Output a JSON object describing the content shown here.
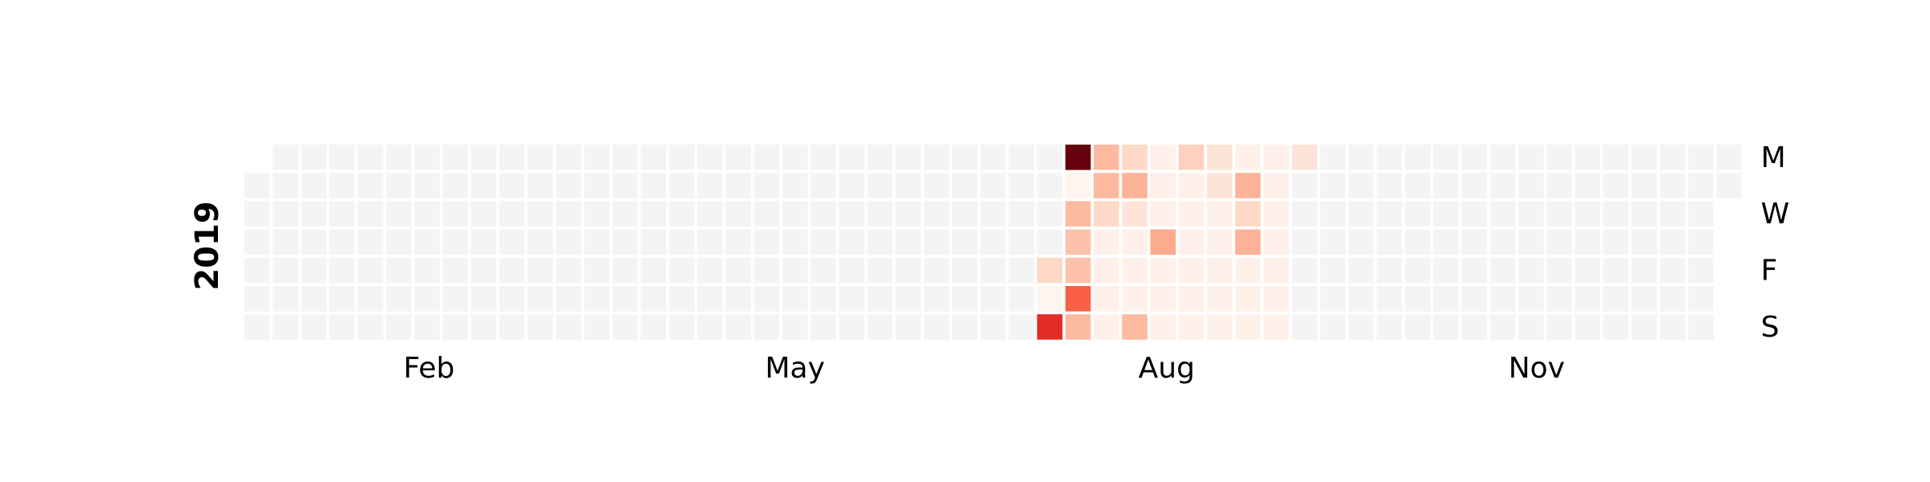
{
  "chart_data": {
    "type": "heatmap",
    "year": 2019,
    "xticks": [
      {
        "value": 2,
        "label": "Feb"
      },
      {
        "value": 5,
        "label": "May"
      },
      {
        "value": 8,
        "label": "Aug"
      },
      {
        "value": 11,
        "label": "Nov"
      }
    ],
    "yticks": [
      {
        "value": 0,
        "label": "M"
      },
      {
        "value": 2,
        "label": "W"
      },
      {
        "value": 4,
        "label": "F"
      },
      {
        "value": 6,
        "label": "S"
      }
    ],
    "colors": [
      "#fff5f0",
      "#fee0d2",
      "#fcbba1",
      "#fc9272",
      "#fb6a4a",
      "#ef3b2c",
      "#cb181d",
      "#a50f15",
      "#67000d"
    ],
    "fillcolor": "#f4f4f4",
    "values": [
      null,
      null,
      null,
      null,
      null,
      null,
      null,
      null,
      null,
      null,
      null,
      null,
      null,
      null,
      null,
      null,
      null,
      null,
      null,
      null,
      null,
      null,
      null,
      null,
      null,
      null,
      null,
      null,
      null,
      null,
      null,
      null,
      null,
      null,
      null,
      null,
      null,
      null,
      null,
      null,
      null,
      null,
      null,
      null,
      null,
      null,
      null,
      null,
      null,
      null,
      null,
      null,
      null,
      null,
      null,
      null,
      null,
      null,
      null,
      null,
      null,
      null,
      null,
      null,
      null,
      null,
      null,
      null,
      null,
      null,
      null,
      null,
      null,
      null,
      null,
      null,
      null,
      null,
      null,
      null,
      null,
      null,
      null,
      null,
      null,
      null,
      null,
      null,
      null,
      null,
      null,
      null,
      null,
      null,
      null,
      null,
      null,
      null,
      null,
      null,
      null,
      null,
      null,
      null,
      null,
      null,
      null,
      null,
      null,
      null,
      null,
      null,
      null,
      null,
      null,
      null,
      null,
      null,
      null,
      null,
      null,
      null,
      null,
      null,
      null,
      null,
      null,
      null,
      null,
      null,
      null,
      null,
      null,
      null,
      null,
      null,
      null,
      null,
      null,
      null,
      null,
      null,
      null,
      null,
      null,
      null,
      null,
      null,
      null,
      null,
      null,
      null,
      null,
      null,
      null,
      null,
      null,
      null,
      null,
      null,
      null,
      null,
      null,
      null,
      null,
      null,
      null,
      null,
      null,
      null,
      null,
      null,
      null,
      null,
      null,
      null,
      null,
      null,
      null,
      null,
      null,
      null,
      null,
      null,
      null,
      null,
      null,
      null,
      null,
      null,
      null,
      null,
      null,
      null,
      null,
      null,
      null,
      null,
      null,
      6,
      0,
      27,
      40,
      0,
      10,
      9,
      9,
      21,
      10,
      10,
      10,
      6,
      1,
      1,
      1,
      1,
      6,
      11,
      4,
      1,
      1,
      1,
      10,
      1,
      1,
      1,
      12,
      1,
      1,
      1,
      7,
      1,
      1,
      1,
      1,
      1,
      1,
      4,
      4,
      1,
      1,
      1,
      1,
      1,
      1,
      11,
      6,
      11,
      1,
      1,
      1,
      1,
      1,
      1,
      1,
      1,
      1,
      1,
      4,
      null,
      null,
      null,
      null,
      null,
      null,
      null,
      null,
      null,
      null,
      null,
      null,
      null,
      null,
      null,
      null,
      null,
      null,
      null,
      null,
      null,
      null,
      null,
      null,
      null,
      null,
      null,
      null,
      null,
      null,
      null,
      null,
      null,
      null,
      null,
      null,
      null,
      null,
      null,
      null,
      null,
      null,
      null,
      null,
      null,
      null,
      null,
      null,
      null,
      null,
      null,
      null,
      null,
      null,
      null,
      null,
      null,
      null,
      null,
      null,
      null,
      null,
      null,
      null,
      null,
      null,
      null,
      null,
      null,
      null,
      null,
      null,
      null,
      null,
      null,
      null,
      null,
      null,
      null,
      null,
      null,
      null,
      null,
      null,
      null,
      null,
      null,
      null,
      null,
      null,
      null,
      null,
      null,
      null,
      null,
      null,
      null,
      null,
      null,
      null,
      null,
      null,
      null,
      null,
      null,
      null
    ]
  }
}
